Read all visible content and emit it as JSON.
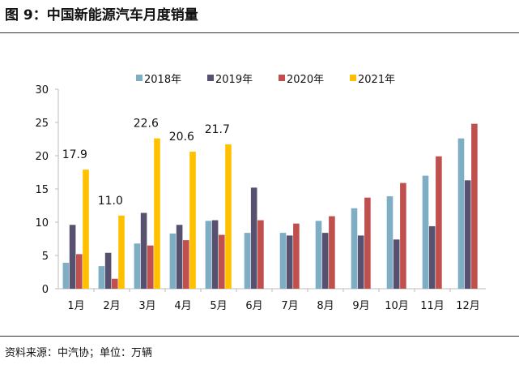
{
  "title": "图 9：中国新能源汽车月度销量",
  "source": "资料来源：中汽协；单位：万辆",
  "chart_data": {
    "type": "bar",
    "categories": [
      "1月",
      "2月",
      "3月",
      "4月",
      "5月",
      "6月",
      "7月",
      "8月",
      "9月",
      "10月",
      "11月",
      "12月"
    ],
    "series": [
      {
        "name": "2018年",
        "color": "#7FAEC4",
        "values": [
          3.9,
          3.4,
          6.8,
          8.3,
          10.2,
          8.4,
          8.4,
          10.2,
          12.1,
          13.9,
          17.0,
          22.6
        ]
      },
      {
        "name": "2019年",
        "color": "#58506F",
        "values": [
          9.6,
          5.4,
          11.4,
          9.6,
          10.3,
          15.2,
          8.0,
          8.4,
          8.0,
          7.4,
          9.4,
          16.3
        ]
      },
      {
        "name": "2020年",
        "color": "#C0504D",
        "values": [
          5.2,
          1.5,
          6.5,
          7.3,
          8.1,
          10.3,
          9.8,
          10.9,
          13.7,
          15.9,
          19.9,
          24.8
        ]
      },
      {
        "name": "2021年",
        "color": "#FFC000",
        "values": [
          17.9,
          11.0,
          22.6,
          20.6,
          21.7,
          null,
          null,
          null,
          null,
          null,
          null,
          null
        ],
        "data_labels": [
          "17.9",
          "11.0",
          "22.6",
          "20.6",
          "21.7"
        ]
      }
    ],
    "yticks": [
      "0",
      "5",
      "10",
      "15",
      "20",
      "25",
      "30"
    ],
    "ylim": [
      0,
      30
    ],
    "legend": "top",
    "grid": false
  }
}
